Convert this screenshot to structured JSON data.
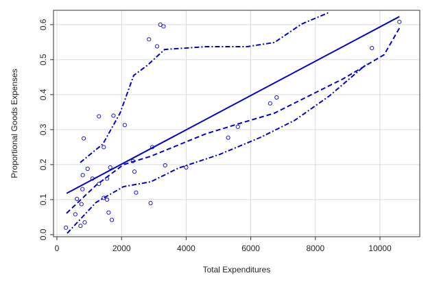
{
  "chart_data": {
    "type": "scatter",
    "xlabel": "Total Expenditures",
    "ylabel": "Proportional Goods Expenses",
    "xlim": [
      -106,
      11231
    ],
    "ylim": [
      -0.006,
      0.641
    ],
    "xticks": [
      0,
      2000,
      4000,
      6000,
      8000,
      10000
    ],
    "yticks": [
      {
        "value": 0,
        "label": "0.0"
      },
      0.1,
      0.2,
      0.3,
      0.4,
      0.5,
      0.6
    ],
    "grid": true,
    "series": [
      {
        "type": "scatter",
        "color": "#1a1acd",
        "x": [
          280,
          570,
          620,
          730,
          760,
          790,
          800,
          830,
          860,
          950,
          1100,
          1300,
          1300,
          1450,
          1450,
          1550,
          1550,
          1600,
          1650,
          1700,
          1750,
          2100,
          2350,
          2400,
          2450,
          2850,
          2900,
          2950,
          3100,
          3200,
          3300,
          3350,
          4000,
          5300,
          5600,
          6600,
          6800,
          9750,
          10600
        ],
        "values": [
          0.02,
          0.058,
          0.102,
          0.025,
          0.087,
          0.13,
          0.17,
          0.275,
          0.035,
          0.188,
          0.16,
          0.145,
          0.338,
          0.25,
          0.105,
          0.16,
          0.1,
          0.063,
          0.192,
          0.042,
          0.34,
          0.313,
          0.21,
          0.18,
          0.12,
          0.558,
          0.09,
          0.25,
          0.538,
          0.6,
          0.595,
          0.198,
          0.192,
          0.277,
          0.308,
          0.375,
          0.392,
          0.533,
          0.608
        ]
      },
      {
        "type": "line",
        "linestyle": "solid",
        "color": "#0000cd",
        "x": [
          300,
          10600
        ],
        "values": [
          0.118,
          0.623
        ]
      },
      {
        "type": "line",
        "linestyle": "dashed",
        "color": "#0000cd",
        "x": [
          297,
          1210,
          2059,
          2909,
          4607,
          5669,
          6730,
          7792,
          8854,
          10127,
          10600
        ],
        "values": [
          0.061,
          0.141,
          0.2,
          0.224,
          0.288,
          0.318,
          0.347,
          0.396,
          0.445,
          0.514,
          0.59
        ]
      },
      {
        "type": "line",
        "linestyle": "dashdot",
        "color": "#0000cd",
        "x": [
          722,
          1423,
          1953,
          2378,
          2803,
          3333,
          4607,
          5881,
          6730,
          7580,
          8429
        ],
        "values": [
          0.206,
          0.259,
          0.347,
          0.455,
          0.484,
          0.529,
          0.537,
          0.537,
          0.549,
          0.602,
          0.635
        ]
      },
      {
        "type": "line",
        "linestyle": "dashdot",
        "color": "#0000cd",
        "x": [
          318,
          1210,
          2059,
          2909,
          3758,
          5032,
          6306,
          7367,
          8429,
          9597
        ],
        "values": [
          0.004,
          0.092,
          0.137,
          0.151,
          0.19,
          0.229,
          0.278,
          0.327,
          0.396,
          0.488
        ]
      }
    ]
  }
}
